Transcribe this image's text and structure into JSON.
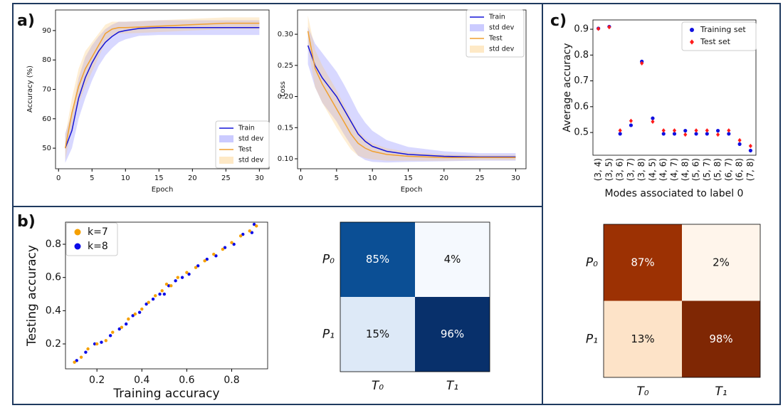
{
  "panel_labels": [
    "a)",
    "b)",
    "c)"
  ],
  "chart_data": [
    {
      "type": "line",
      "xlabel": "Epoch",
      "ylabel": "Accuracy (%)",
      "x": [
        1,
        2,
        3,
        4,
        5,
        6,
        7,
        8,
        9,
        10,
        12,
        15,
        20,
        25,
        30
      ],
      "xlim": [
        -0.45,
        31.45
      ],
      "xticks": [
        0,
        5,
        10,
        15,
        20,
        25,
        30
      ],
      "ylim": [
        43,
        97
      ],
      "yticks": [
        50,
        60,
        70,
        80,
        90
      ],
      "series": [
        {
          "name": "Train",
          "color": "#1515d8",
          "values": [
            50,
            56,
            67,
            74,
            79,
            83,
            86,
            88,
            89.5,
            90,
            90.7,
            91,
            91,
            91,
            91
          ],
          "band": {
            "name": "std dev",
            "color": "#7d7dff",
            "values": [
              5,
              6,
              7,
              7,
              6,
              5,
              4.5,
              4,
              3.5,
              3,
              2.5,
              2.5,
              2.5,
              2.5,
              2.5
            ]
          }
        },
        {
          "name": "Test",
          "color": "#f0a030",
          "values": [
            50,
            62,
            71,
            77,
            81,
            85,
            89,
            90.5,
            91,
            91,
            91.2,
            91.5,
            92,
            92.5,
            92.5
          ],
          "band": {
            "name": "std dev",
            "color": "#fcc870",
            "values": [
              4,
              5,
              6,
              6,
              5,
              4,
              3,
              2.5,
              2,
              2,
              2,
              2,
              2,
              2,
              2
            ]
          }
        }
      ]
    },
    {
      "type": "line",
      "xlabel": "Epoch",
      "ylabel": "Loss",
      "x": [
        1,
        2,
        3,
        4,
        5,
        6,
        7,
        8,
        9,
        10,
        12,
        15,
        20,
        25,
        30
      ],
      "xlim": [
        -0.45,
        31.45
      ],
      "xticks": [
        0,
        5,
        10,
        15,
        20,
        25,
        30
      ],
      "ylim": [
        0.084,
        0.339
      ],
      "yticks": [
        {
          "value": 0.1,
          "label": "0.10"
        },
        {
          "value": 0.15,
          "label": "0.15"
        },
        {
          "value": 0.2,
          "label": "0.20"
        },
        {
          "value": 0.25,
          "label": "0.25"
        },
        {
          "value": 0.3,
          "label": "0.30"
        }
      ],
      "series": [
        {
          "name": "Train",
          "color": "#1515d8",
          "values": [
            0.282,
            0.25,
            0.23,
            0.215,
            0.2,
            0.18,
            0.16,
            0.14,
            0.128,
            0.12,
            0.112,
            0.107,
            0.104,
            0.103,
            0.103
          ],
          "band": {
            "name": "std dev",
            "color": "#7d7dff",
            "values": [
              0.03,
              0.035,
              0.04,
              0.04,
              0.04,
              0.04,
              0.038,
              0.035,
              0.03,
              0.025,
              0.018,
              0.012,
              0.008,
              0.006,
              0.006
            ]
          }
        },
        {
          "name": "Test",
          "color": "#f0a030",
          "values": [
            0.305,
            0.245,
            0.22,
            0.2,
            0.18,
            0.16,
            0.14,
            0.125,
            0.117,
            0.112,
            0.107,
            0.104,
            0.102,
            0.102,
            0.102
          ],
          "band": {
            "name": "std dev",
            "color": "#fcc870",
            "values": [
              0.025,
              0.03,
              0.03,
              0.03,
              0.03,
              0.028,
              0.025,
              0.02,
              0.016,
              0.013,
              0.01,
              0.007,
              0.005,
              0.004,
              0.004
            ]
          }
        }
      ]
    },
    {
      "type": "scatter",
      "xlabel": "Training accuracy",
      "ylabel": "Testing accuracy",
      "xlim": [
        0.06,
        0.96
      ],
      "xticks": [
        0.2,
        0.4,
        0.6,
        0.8
      ],
      "ylim": [
        0.05,
        0.933
      ],
      "yticks": [
        0.2,
        0.4,
        0.6,
        0.8
      ],
      "series": [
        {
          "name": "k=7",
          "color": "#f5a000",
          "x": [
            0.1,
            0.13,
            0.16,
            0.2,
            0.24,
            0.27,
            0.31,
            0.34,
            0.37,
            0.4,
            0.43,
            0.46,
            0.49,
            0.51,
            0.53,
            0.56,
            0.6,
            0.64,
            0.68,
            0.72,
            0.76,
            0.8,
            0.84,
            0.88,
            0.91
          ],
          "values": [
            0.09,
            0.12,
            0.17,
            0.2,
            0.22,
            0.27,
            0.3,
            0.35,
            0.38,
            0.41,
            0.45,
            0.49,
            0.52,
            0.56,
            0.55,
            0.6,
            0.63,
            0.66,
            0.7,
            0.74,
            0.77,
            0.81,
            0.85,
            0.88,
            0.91
          ]
        },
        {
          "name": "k=8",
          "color": "#0a0ae8",
          "x": [
            0.11,
            0.15,
            0.19,
            0.22,
            0.26,
            0.3,
            0.33,
            0.36,
            0.39,
            0.42,
            0.45,
            0.48,
            0.5,
            0.52,
            0.55,
            0.58,
            0.61,
            0.65,
            0.69,
            0.73,
            0.77,
            0.81,
            0.85,
            0.89,
            0.9
          ],
          "values": [
            0.1,
            0.15,
            0.2,
            0.21,
            0.25,
            0.29,
            0.32,
            0.37,
            0.39,
            0.44,
            0.47,
            0.5,
            0.5,
            0.55,
            0.58,
            0.6,
            0.62,
            0.67,
            0.71,
            0.73,
            0.78,
            0.8,
            0.86,
            0.87,
            0.92
          ]
        }
      ]
    },
    {
      "type": "heatmap",
      "x_categories": [
        "T₀",
        "T₁"
      ],
      "y_categories": [
        "P₀",
        "P₁"
      ],
      "values": [
        [
          85,
          4
        ],
        [
          15,
          96
        ]
      ],
      "value_labels": [
        [
          "85%",
          "4%"
        ],
        [
          "15%",
          "96%"
        ]
      ],
      "colors": [
        [
          "#0b4f95",
          "#f5f9fe"
        ],
        [
          "#dde9f7",
          "#08306b"
        ]
      ]
    },
    {
      "type": "category-scatter",
      "xlabel": "Modes associated to label 0",
      "ylabel": "Average accuracy",
      "categories": [
        "(3, 4)",
        "(3, 5)",
        "(3, 6)",
        "(3, 7)",
        "(3, 8)",
        "(4, 5)",
        "(4, 6)",
        "(4, 7)",
        "(4, 8)",
        "(5, 6)",
        "(5, 7)",
        "(5, 8)",
        "(6, 7)",
        "(6, 8)",
        "(7, 8)"
      ],
      "ylim": [
        0.412,
        0.936
      ],
      "yticks": [
        0.5,
        0.6,
        0.7,
        0.8,
        0.9
      ],
      "series": [
        {
          "name": "Training set",
          "color": "#1010e0",
          "marker": "circle",
          "values": [
            0.903,
            0.91,
            0.495,
            0.528,
            0.775,
            0.555,
            0.495,
            0.495,
            0.507,
            0.495,
            0.495,
            0.507,
            0.495,
            0.455,
            0.43
          ]
        },
        {
          "name": "Test set",
          "color": "#ff1a1a",
          "marker": "diamond",
          "values": [
            0.902,
            0.908,
            0.508,
            0.545,
            0.768,
            0.542,
            0.508,
            0.508,
            0.492,
            0.508,
            0.508,
            0.492,
            0.508,
            0.47,
            0.448
          ]
        }
      ]
    },
    {
      "type": "heatmap",
      "x_categories": [
        "T₀",
        "T₁"
      ],
      "y_categories": [
        "P₀",
        "P₁"
      ],
      "values": [
        [
          87,
          2
        ],
        [
          13,
          98
        ]
      ],
      "value_labels": [
        [
          "87%",
          "2%"
        ],
        [
          "13%",
          "98%"
        ]
      ],
      "colors": [
        [
          "#9c3103",
          "#fff5eb"
        ],
        [
          "#fde3c8",
          "#7f2704"
        ]
      ]
    }
  ]
}
